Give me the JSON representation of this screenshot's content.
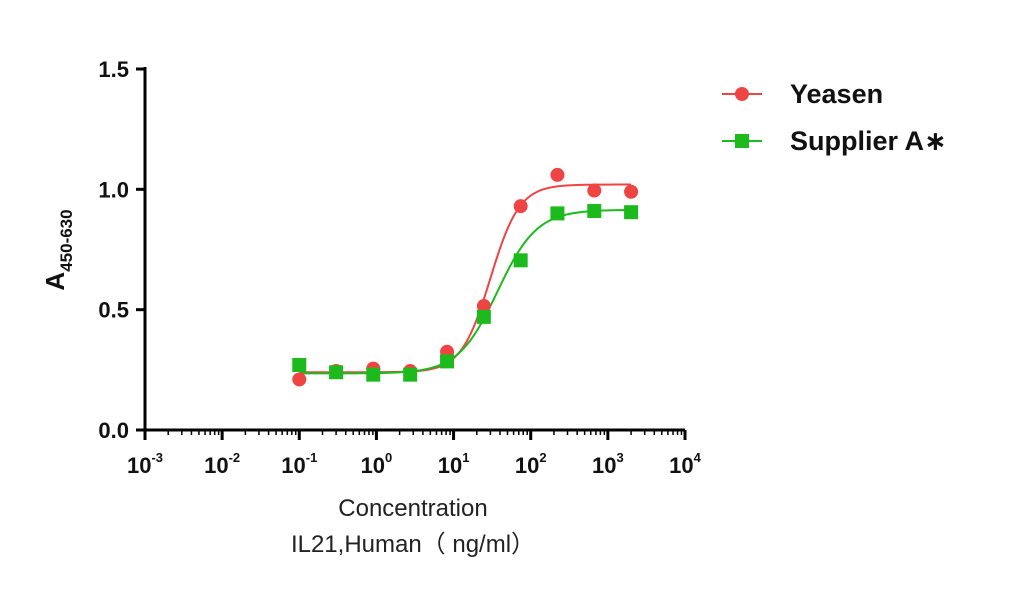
{
  "chart_data": {
    "type": "scatter",
    "xscale": "log",
    "xlim": [
      0.001,
      10000
    ],
    "ylim": [
      0,
      1.5
    ],
    "xlabel_line1": "Concentration",
    "xlabel_line2": "IL21,Human（ ng/ml）",
    "ylabel_main": "A",
    "ylabel_sub": "450-630",
    "y_ticks": [
      "0.0",
      "0.5",
      "1.0",
      "1.5"
    ],
    "y_tick_values": [
      0,
      0.5,
      1.0,
      1.5
    ],
    "x_ticks": [
      {
        "base": "10",
        "exp": "-3"
      },
      {
        "base": "10",
        "exp": "-2"
      },
      {
        "base": "10",
        "exp": "-1"
      },
      {
        "base": "10",
        "exp": "0"
      },
      {
        "base": "10",
        "exp": "1"
      },
      {
        "base": "10",
        "exp": "2"
      },
      {
        "base": "10",
        "exp": "3"
      },
      {
        "base": "10",
        "exp": "4"
      }
    ],
    "x_tick_exponents": [
      -3,
      -2,
      -1,
      0,
      1,
      2,
      3,
      4
    ],
    "legend_position": "top-right",
    "series": [
      {
        "name": "Yeasen",
        "color": "#ee4444",
        "marker": "circle",
        "x": [
          0.1,
          0.3,
          0.91,
          2.74,
          8.23,
          24.7,
          74.1,
          222,
          667,
          2000
        ],
        "y": [
          0.21,
          0.245,
          0.255,
          0.245,
          0.325,
          0.515,
          0.93,
          1.06,
          0.995,
          0.99
        ],
        "fit": {
          "bottom": 0.24,
          "top": 1.02,
          "ec50": 30,
          "hill": 2.3
        }
      },
      {
        "name": "Supplier A∗",
        "color": "#1dba1d",
        "marker": "square",
        "x": [
          0.1,
          0.3,
          0.91,
          2.74,
          8.23,
          24.7,
          74.1,
          222,
          667,
          2000
        ],
        "y": [
          0.27,
          0.24,
          0.23,
          0.23,
          0.285,
          0.47,
          0.705,
          0.9,
          0.91,
          0.905
        ],
        "fit": {
          "bottom": 0.235,
          "top": 0.915,
          "ec50": 37,
          "hill": 1.7
        }
      }
    ]
  }
}
